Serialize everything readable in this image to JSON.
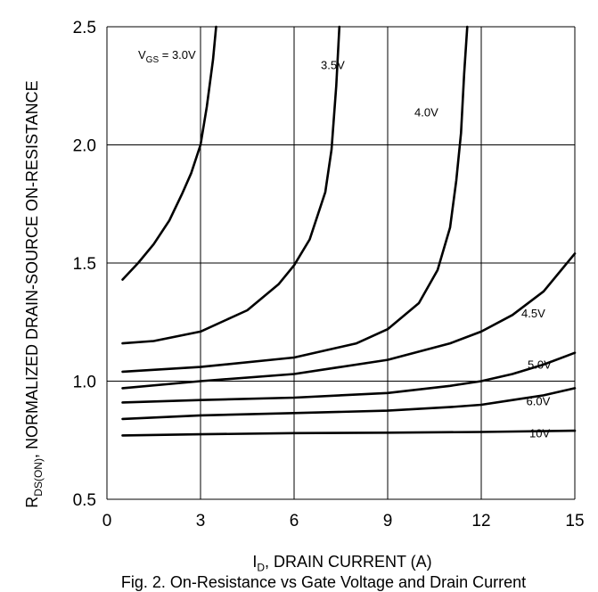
{
  "chart_data": {
    "type": "line",
    "xlabel_main": "I",
    "xlabel_sub": "D",
    "xlabel_rest": ", DRAIN CURRENT (A)",
    "ylabel_main": "R",
    "ylabel_sub": "DS(ON)",
    "ylabel_rest": ", NORMALIZED DRAIN-SOURCE ON-RESISTANCE",
    "caption": "Fig. 2. On-Resistance vs Gate Voltage and Drain Current",
    "xlim": [
      0,
      15
    ],
    "ylim": [
      0.5,
      2.5
    ],
    "xticks": [
      "0",
      "3",
      "6",
      "9",
      "12",
      "15"
    ],
    "yticks": [
      "0.5",
      "1.0",
      "1.5",
      "2.0",
      "2.5"
    ],
    "grid": true,
    "vgs_label_main": "V",
    "vgs_label_sub": "GS",
    "vgs_label_rest": " = 3.0V",
    "series": [
      {
        "name": "3.0V",
        "x": [
          0.5,
          1.0,
          1.5,
          2.0,
          2.4,
          2.7,
          3.0,
          3.2,
          3.4,
          3.5
        ],
        "y": [
          1.43,
          1.5,
          1.58,
          1.68,
          1.79,
          1.88,
          2.0,
          2.16,
          2.36,
          2.5
        ]
      },
      {
        "name": "3.5V",
        "x": [
          0.5,
          1.5,
          3.0,
          4.5,
          5.5,
          6.0,
          6.5,
          7.0,
          7.2,
          7.35,
          7.45
        ],
        "y": [
          1.16,
          1.17,
          1.21,
          1.3,
          1.41,
          1.49,
          1.6,
          1.8,
          1.98,
          2.25,
          2.5
        ]
      },
      {
        "name": "4.0V",
        "x": [
          0.5,
          3.0,
          6.0,
          8.0,
          9.0,
          10.0,
          10.6,
          11.0,
          11.2,
          11.35,
          11.45,
          11.55
        ],
        "y": [
          1.04,
          1.06,
          1.1,
          1.16,
          1.22,
          1.33,
          1.47,
          1.65,
          1.85,
          2.05,
          2.3,
          2.5
        ]
      },
      {
        "name": "4.5V",
        "x": [
          0.5,
          3.0,
          6.0,
          9.0,
          11.0,
          12.0,
          13.0,
          14.0,
          15.0
        ],
        "y": [
          0.97,
          1.0,
          1.03,
          1.09,
          1.16,
          1.21,
          1.28,
          1.38,
          1.54
        ]
      },
      {
        "name": "5.0V",
        "x": [
          0.5,
          3.0,
          6.0,
          9.0,
          11.0,
          12.0,
          13.0,
          14.0,
          15.0
        ],
        "y": [
          0.91,
          0.92,
          0.93,
          0.95,
          0.98,
          1.0,
          1.03,
          1.07,
          1.12
        ]
      },
      {
        "name": "6.0V",
        "x": [
          0.5,
          3.0,
          6.0,
          9.0,
          11.0,
          12.0,
          13.0,
          14.0,
          15.0
        ],
        "y": [
          0.84,
          0.855,
          0.865,
          0.875,
          0.89,
          0.9,
          0.92,
          0.94,
          0.97
        ]
      },
      {
        "name": "10V",
        "x": [
          0.5,
          3.0,
          6.0,
          9.0,
          12.0,
          15.0
        ],
        "y": [
          0.77,
          0.775,
          0.78,
          0.782,
          0.785,
          0.79
        ]
      }
    ],
    "curve_labels": [
      {
        "series": "3.5V",
        "text": "3.5V"
      },
      {
        "series": "4.0V",
        "text": "4.0V"
      },
      {
        "series": "4.5V",
        "text": "4.5V"
      },
      {
        "series": "5.0V",
        "text": "5.0V"
      },
      {
        "series": "6.0V",
        "text": "6.0V"
      },
      {
        "series": "10V",
        "text": "10V"
      }
    ]
  }
}
